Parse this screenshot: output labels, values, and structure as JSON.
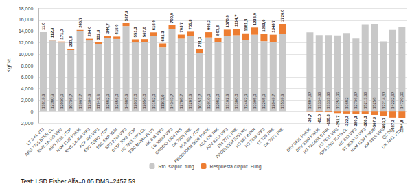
{
  "chart_data": {
    "type": "bar",
    "y_label": "Kg/ha",
    "footnote": "Test: LSD Fisher Alfa=0.05 DMS=2457.59",
    "categories": [
      "LT 3-44 VT3",
      "ARG 7715 BTRR CL",
      "KWS 19-120 VIP3",
      "ARG 7738 VT3P",
      "NXM 1122 PWUE",
      "KWS 14-408 VIP3",
      "ACA 490 VIP3",
      "EBC TORO VT3P",
      "EBC EXP 3524",
      "SPS 2743 VIP3",
      "BASF 7049 VT3P",
      "NS 7921 VIP3 CL",
      "EBC MAIRA PLUS",
      "NK 833 VIP3",
      "LG 30849 VIP3",
      "GRDBIO 1924 THS",
      "DK 7208 TRE",
      "ACA 484 VT3P",
      "PRODUCEM 5608 PWUE",
      "ACA 476 TRE",
      "ADV 8122 VIP3",
      "DM 2772 TRE",
      "PRODUCEM 5353 RE",
      "HS 867 BTRR",
      "NS 7818 VIP3",
      "LT 725 TRE",
      "DK 7272 TRE",
      null,
      null,
      "BRV 8421 PWUE",
      "BRV 8380 PWUE",
      "HS TRONIX BTRR",
      "NS 7621 VIP3",
      "SPS 2760 TDTG CL",
      "NS 810 VIP3",
      "ST 9820-20 VIP3",
      "NXM 1138 PWUE",
      "KM 3916 VIP3",
      "QS 203",
      "DK 7441 VT3P"
    ],
    "series": [
      {
        "name": "Rto. s/aplic. fung.",
        "color": "#c8c8c8",
        "values": [
          13819.3,
          12380.3,
          12030.3,
          10736.7,
          13967.7,
          12394.3,
          11743.3,
          12882.3,
          12656.0,
          14885.3,
          12037.0,
          12056.0,
          13182.0,
          11193.0,
          14343.7,
          12708.7,
          13201.3,
          10151.7,
          12919.3,
          12082.0,
          13192.3,
          13300.0,
          12462.3,
          13395.0,
          12265.3,
          12049.7,
          13539.3,
          null,
          null,
          13804.67,
          13334.33,
          13333.33,
          13253.33,
          13682,
          12736.67,
          15213.33,
          15258,
          12214.67,
          14222.67,
          14729.33
        ],
        "value_labels": [
          "13819,3",
          "12380,3",
          "12030,3",
          "10736,7",
          "13967,7",
          "12394,3",
          "11743,3",
          "12882,3",
          "12656,0",
          "14885,3",
          "12037,0",
          "12056,0",
          "13182,0",
          "11193,0",
          "14343,7",
          "12708,7",
          "13201,3",
          "10151,7",
          "12919,3",
          "12082,0",
          "13192,3",
          "13300,0",
          "12462,3",
          "13395,0",
          "12265,3",
          "12049,7",
          "13539,3",
          null,
          null,
          "13804,67",
          "13334,33",
          "13333,33",
          "13253,33",
          "13682",
          "12736,67",
          "15213,33",
          "15258",
          "12214,67",
          "14222,67",
          "14729,33"
        ]
      },
      {
        "name": "Respuesta c/aplic. Fung.",
        "color": "#ed7d31",
        "values": [
          11.0,
          112.3,
          171.0,
          237.3,
          246.7,
          294.0,
          332.3,
          344.7,
          415.0,
          527.3,
          551.3,
          567.0,
          616.0,
          681.3,
          700.0,
          703.7,
          705.3,
          721.3,
          906.3,
          807.3,
          1070.0,
          1114.7,
          1161.3,
          1236.0,
          1253.0,
          1348.7,
          1720.0,
          null,
          null,
          -36.7,
          -83.0,
          -100.3,
          -251.7,
          -322.3,
          -380.3,
          -386.3,
          -567.3,
          -693.7,
          -1027.3,
          -1104.8
        ],
        "value_labels": [
          "11,0",
          "112,3",
          "171,0",
          "237,3",
          "246,7",
          "294,0",
          "332,3",
          "344,7",
          "415,0",
          "527,3",
          "551,3",
          "567,0",
          "616,0",
          "681,3",
          "700,0",
          "703,7",
          "705,3",
          "721,3",
          "906,3",
          "807,3",
          "1070,0",
          "1114,7",
          "1161,3",
          "1236,0",
          "1253,0",
          "1348,7",
          "1720,0",
          null,
          null,
          "-36,7",
          "-83,0",
          "-100,3",
          "-251,7",
          "-322,3",
          "-380,3",
          "-386,3",
          "-567,3",
          "-693,7",
          "-1027,3",
          "-1104,8"
        ]
      }
    ],
    "ylim": [
      -2000,
      18000
    ],
    "yticks": [
      -2000,
      0,
      2000,
      4000,
      6000,
      8000,
      10000,
      12000,
      14000,
      16000,
      18000
    ],
    "stacked": true,
    "data_labels": true,
    "legend": "bottom",
    "grid": true
  }
}
